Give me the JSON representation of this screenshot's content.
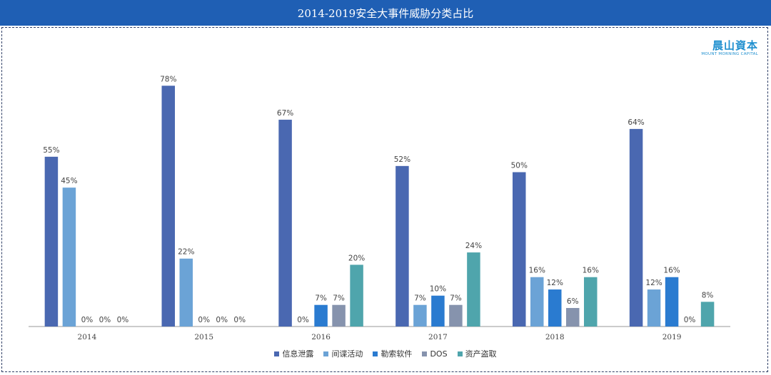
{
  "chart_data": {
    "type": "bar",
    "title": "2014-2019安全大事件威胁分类占比",
    "xlabel": "",
    "ylabel": "",
    "ylim": [
      0,
      100
    ],
    "grid": false,
    "legend_position": "bottom",
    "value_suffix": "%",
    "categories": [
      "2014",
      "2015",
      "2016",
      "2017",
      "2018",
      "2019"
    ],
    "series": [
      {
        "name": "信息泄露",
        "color": "#4a68b1",
        "values": [
          55,
          78,
          67,
          52,
          50,
          64
        ],
        "labels": [
          "55%",
          "78%",
          "67%",
          "52%",
          "50%",
          "64%"
        ]
      },
      {
        "name": "间谍活动",
        "color": "#6ba3d6",
        "values": [
          45,
          22,
          0,
          7,
          16,
          12
        ],
        "labels": [
          "45%",
          "22%",
          "0%",
          "7%",
          "16%",
          "12%"
        ]
      },
      {
        "name": "勒索软件",
        "color": "#2a7bd0",
        "values": [
          0,
          0,
          7,
          10,
          12,
          16
        ],
        "labels": [
          "0%",
          "0%",
          "7%",
          "10%",
          "12%",
          "16%"
        ]
      },
      {
        "name": "DOS",
        "color": "#8693ad",
        "values": [
          0,
          0,
          7,
          7,
          6,
          0
        ],
        "labels": [
          "0%",
          "0%",
          "7%",
          "7%",
          "6%",
          "0%"
        ]
      },
      {
        "name": "资产盗取",
        "color": "#4fa5ac",
        "values": [
          0,
          0,
          20,
          24,
          16,
          8
        ],
        "labels": [
          "0%",
          "0%",
          "20%",
          "24%",
          "16%",
          "8%"
        ]
      }
    ]
  },
  "logo": {
    "name_cn": "晨山資本",
    "name_en": "MOUNT MORNING CAPITAL",
    "color": "#1f8fcf"
  },
  "colors": {
    "title_bar": "#1f5fb4",
    "frame": "#2f3f66",
    "axis": "#999999"
  }
}
